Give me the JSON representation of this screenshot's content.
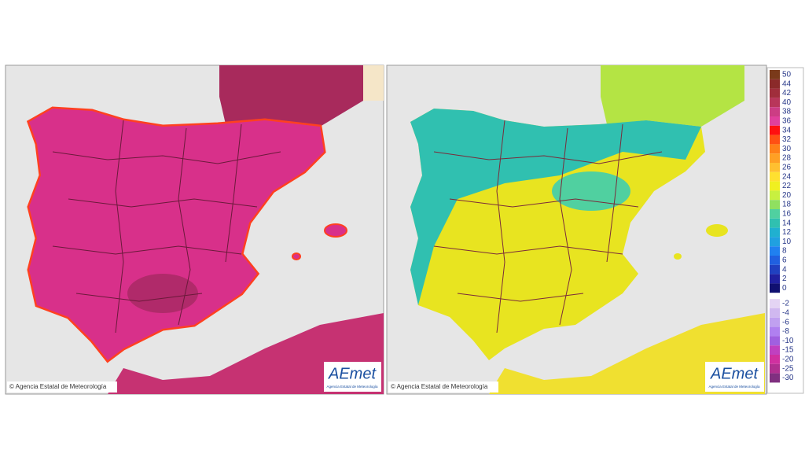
{
  "panels": [
    {
      "copyright": "© Agencia Estatal de Meteorología",
      "logo": {
        "brand": "AEmet",
        "caption": "Agencia Estatal de Meteorología"
      }
    },
    {
      "copyright": "© Agencia Estatal de Meteorología",
      "logo": {
        "brand": "AEmet",
        "caption": "Agencia Estatal de Meteorología"
      }
    }
  ],
  "legend": {
    "items": [
      {
        "label": 50,
        "color": "#7a3a1a"
      },
      {
        "label": 44,
        "color": "#8b2a2a"
      },
      {
        "label": 42,
        "color": "#a02e3c"
      },
      {
        "label": 40,
        "color": "#b8365a"
      },
      {
        "label": 38,
        "color": "#cc3d84"
      },
      {
        "label": 36,
        "color": "#e0409c"
      },
      {
        "label": 34,
        "color": "#ff1010"
      },
      {
        "label": 32,
        "color": "#ff5014"
      },
      {
        "label": 30,
        "color": "#ff8018"
      },
      {
        "label": 28,
        "color": "#ffa024"
      },
      {
        "label": 26,
        "color": "#ffc030"
      },
      {
        "label": 24,
        "color": "#ffe030"
      },
      {
        "label": 22,
        "color": "#f0f020"
      },
      {
        "label": 20,
        "color": "#c8f040"
      },
      {
        "label": 18,
        "color": "#90e060"
      },
      {
        "label": 16,
        "color": "#50d0a0"
      },
      {
        "label": 14,
        "color": "#30c0b0"
      },
      {
        "label": 12,
        "color": "#20b0d0"
      },
      {
        "label": 10,
        "color": "#20a0e0"
      },
      {
        "label": 8,
        "color": "#2080f0"
      },
      {
        "label": 6,
        "color": "#2060e0"
      },
      {
        "label": 4,
        "color": "#2040c0"
      },
      {
        "label": 2,
        "color": "#2020a0"
      },
      {
        "label": 0,
        "color": "#101070"
      },
      {
        "label": -2,
        "color": "#e4d4f4"
      },
      {
        "label": -4,
        "color": "#d0b8f0"
      },
      {
        "label": -6,
        "color": "#c0a0f0"
      },
      {
        "label": -8,
        "color": "#b080f0"
      },
      {
        "label": -10,
        "color": "#a060e0"
      },
      {
        "label": -15,
        "color": "#c040c0"
      },
      {
        "label": -20,
        "color": "#d030a0"
      },
      {
        "label": -25,
        "color": "#b03090"
      },
      {
        "label": -30,
        "color": "#803080"
      }
    ]
  }
}
